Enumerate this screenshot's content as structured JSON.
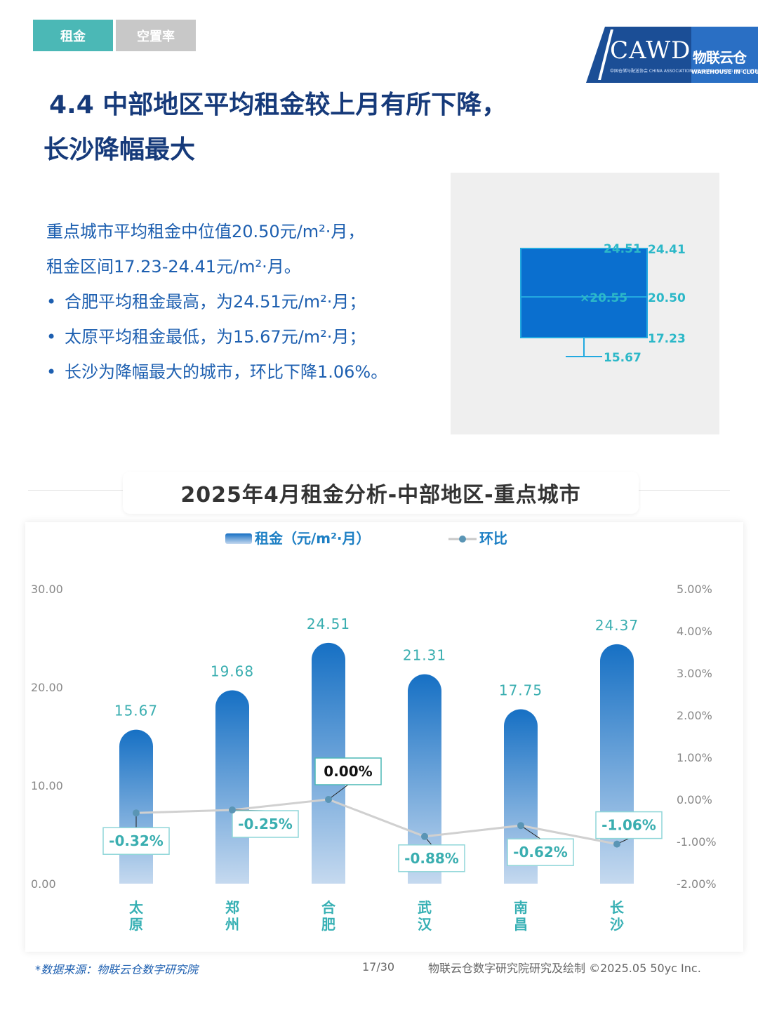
{
  "tabs": [
    {
      "label": "租金",
      "active": true
    },
    {
      "label": "空置率",
      "active": false
    }
  ],
  "logo": {
    "main": "CAWD",
    "sub": "中国仓储与配送协会 CHINA ASSOCIATION OF WAREHOUSING AND DISTRIBUTION",
    "cn": "物联云仓",
    "en": "WAREHOUSE IN CLOUD"
  },
  "title": {
    "line1": "4.4 中部地区平均租金较上月有所下降，",
    "line2": "长沙降幅最大"
  },
  "description": {
    "line1": "重点城市平均租金中位值20.50元/m²·月，",
    "line2": "租金区间17.23-24.41元/m²·月。",
    "bullets": [
      "合肥平均租金最高，为24.51元/m²·月；",
      "太原平均租金最低，为15.67元/m²·月；",
      "长沙为降幅最大的城市，环比下降1.06%。"
    ]
  },
  "boxplot": {
    "max": 24.51,
    "q3": 24.41,
    "mean": 20.55,
    "median": 20.5,
    "q1": 17.23,
    "min": 15.67,
    "labels": {
      "max": "24.51",
      "q3": "24.41",
      "mean": "×20.55",
      "median": "20.50",
      "q1": "17.23",
      "min": "15.67"
    },
    "fill": "#0a6fcf",
    "line": "#22a9e0",
    "label_color": "#2cb8c8"
  },
  "chart_title": "2025年4月租金分析-中部地区-重点城市",
  "chart_data": {
    "type": "bar",
    "categories": [
      "太原",
      "郑州",
      "合肥",
      "武汉",
      "南昌",
      "长沙"
    ],
    "series": [
      {
        "name": "租金（元/m²·月）",
        "type": "bar",
        "axis": "left",
        "values": [
          15.67,
          19.68,
          24.51,
          21.31,
          17.75,
          24.37
        ],
        "labels": [
          "15.67",
          "19.68",
          "24.51",
          "21.31",
          "17.75",
          "24.37"
        ]
      },
      {
        "name": "环比",
        "type": "line",
        "axis": "right",
        "values": [
          -0.32,
          -0.25,
          0.0,
          -0.88,
          -0.62,
          -1.06
        ],
        "labels": [
          "-0.32%",
          "-0.25%",
          "0.00%",
          "-0.88%",
          "-0.62%",
          "-1.06%"
        ]
      }
    ],
    "y_left": {
      "range": [
        0,
        30
      ],
      "ticks": [
        "0.00",
        "10.00",
        "20.00",
        "30.00"
      ]
    },
    "y_right": {
      "range": [
        -2,
        5
      ],
      "ticks": [
        "-2.00%",
        "-1.00%",
        "0.00%",
        "1.00%",
        "2.00%",
        "3.00%",
        "4.00%",
        "5.00%"
      ]
    },
    "legend_position": "top-center",
    "grid": false,
    "colors": {
      "bar_top": "#1670c4",
      "bar_bottom": "#c5d9ef",
      "line": "#d0d0d0",
      "marker": "#5a95b5",
      "value_label": "#3aaeb0",
      "category_label": "#37b0b4"
    }
  },
  "footer": {
    "source": "*数据来源：物联云仓数字研究院",
    "page": "17/30",
    "credit": "物联云仓数字研究院研究及绘制    ©2025.05 50yc Inc."
  }
}
